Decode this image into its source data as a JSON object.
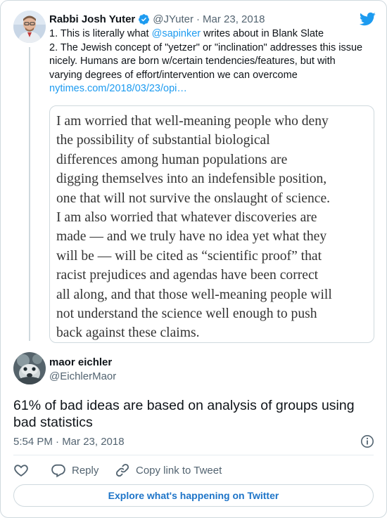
{
  "quoted_tweet": {
    "author": {
      "name": "Rabbi Josh Yuter",
      "handle": "@JYuter",
      "date": "Mar 23, 2018"
    },
    "separator": "·",
    "line1_prefix": "1. This is literally what ",
    "line1_mention": "@sapinker",
    "line1_suffix": " writes about in Blank Slate",
    "line2": "2. The Jewish concept of \"yetzer\" or \"inclination\" addresses this issue",
    "line3": "nicely. Humans are born w/certain tendencies/features, but with",
    "line4": "varying degrees of effort/intervention we can overcome",
    "link": "nytimes.com/2018/03/23/opi…",
    "quote_lines": [
      "I am worried that well-meaning people who deny",
      "the possibility of substantial biological",
      "differences among human populations are",
      "digging themselves into an indefensible position,",
      "one that will not survive the onslaught of science.",
      "I am also worried that whatever discoveries are",
      "made — and we truly have no idea yet what they",
      "will be — will be cited as “scientific proof” that",
      "racist prejudices and agendas have been correct",
      "all along, and that those well-meaning people will",
      "not understand the science well enough to push",
      "back against these claims."
    ]
  },
  "main_tweet": {
    "author": {
      "name": "maor eichler",
      "handle": "@EichlerMaor"
    },
    "text_line1": "61% of bad ideas are based on analysis of groups using",
    "text_line2": "bad statistics",
    "timestamp": "5:54 PM · Mar 23, 2018"
  },
  "actions": {
    "reply": "Reply",
    "copy_link": "Copy link to Tweet"
  },
  "explore_button": "Explore what's happening on Twitter",
  "colors": {
    "accent": "#1d9bf0",
    "verified": "#1d9bf0",
    "text": "#0f1419",
    "muted": "#536471",
    "border": "#cfd9de"
  },
  "icons": [
    "twitter-bird-icon",
    "verified-badge-icon",
    "info-icon",
    "heart-icon",
    "reply-icon",
    "link-icon"
  ]
}
